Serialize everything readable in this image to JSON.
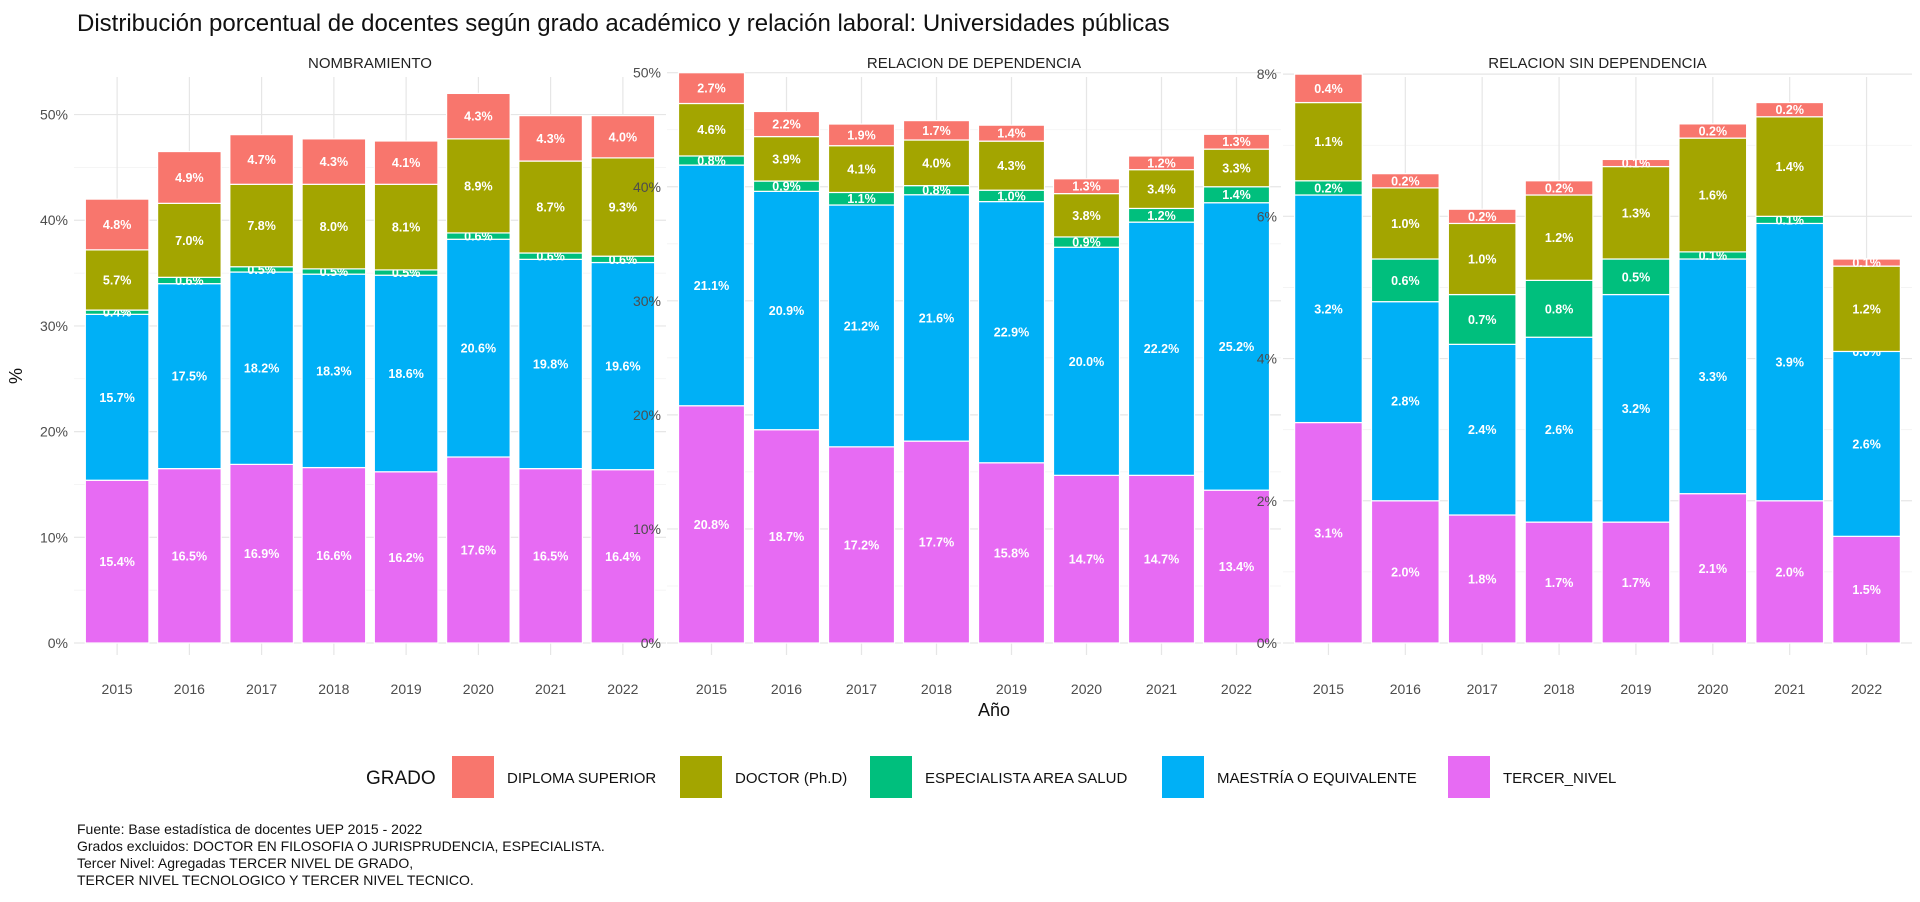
{
  "chart_data": {
    "type": "bar",
    "stacked": true,
    "title": "Distribución porcentual de docentes según grado académico y relación laboral: Universidades públicas",
    "xlabel": "Año",
    "ylabel": "%",
    "categories": [
      "2015",
      "2016",
      "2017",
      "2018",
      "2019",
      "2020",
      "2021",
      "2022"
    ],
    "legend": {
      "title": "GRADO",
      "position": "bottom",
      "entries": [
        {
          "name": "DIPLOMA SUPERIOR",
          "color": "#F8766D"
        },
        {
          "name": "DOCTOR (Ph.D)",
          "color": "#A3A500"
        },
        {
          "name": "ESPECIALISTA AREA SALUD",
          "color": "#00BF7D"
        },
        {
          "name": "MAESTRÍA O EQUIVALENTE",
          "color": "#00B0F6"
        },
        {
          "name": "TERCER_NIVEL",
          "color": "#E76BF3"
        }
      ]
    },
    "grid": true,
    "stack_order_bottom_to_top": [
      "TERCER_NIVEL",
      "MAESTRÍA O EQUIVALENTE",
      "ESPECIALISTA AREA SALUD",
      "DOCTOR (Ph.D)",
      "DIPLOMA SUPERIOR"
    ],
    "facets": [
      {
        "title": "NOMBRAMIENTO",
        "ylim": [
          0,
          54.5
        ],
        "yticks": [
          0,
          10,
          20,
          30,
          40,
          50
        ],
        "ytick_labels": [
          "0%",
          "10%",
          "20%",
          "30%",
          "40%",
          "50%"
        ],
        "series": [
          {
            "name": "TERCER_NIVEL",
            "values": [
              15.4,
              16.5,
              16.9,
              16.6,
              16.2,
              17.6,
              16.5,
              16.4
            ],
            "labels": [
              "15.4%",
              "16.5%",
              "16.9%",
              "16.6%",
              "16.2%",
              "17.6%",
              "16.5%",
              "16.4%"
            ]
          },
          {
            "name": "MAESTRÍA O EQUIVALENTE",
            "values": [
              15.7,
              17.5,
              18.2,
              18.3,
              18.6,
              20.6,
              19.8,
              19.6
            ],
            "labels": [
              "15.7%",
              "17.5%",
              "18.2%",
              "18.3%",
              "18.6%",
              "20.6%",
              "19.8%",
              "19.6%"
            ]
          },
          {
            "name": "ESPECIALISTA AREA SALUD",
            "values": [
              0.4,
              0.6,
              0.5,
              0.5,
              0.5,
              0.6,
              0.6,
              0.6
            ],
            "labels": [
              "0.4%",
              "0.6%",
              "0.5%",
              "0.5%",
              "0.5%",
              "0.6%",
              "0.6%",
              "0.6%"
            ]
          },
          {
            "name": "DOCTOR (Ph.D)",
            "values": [
              5.7,
              7.0,
              7.8,
              8.0,
              8.1,
              8.9,
              8.7,
              9.3
            ],
            "labels": [
              "5.7%",
              "7.0%",
              "7.8%",
              "8.0%",
              "8.1%",
              "8.9%",
              "8.7%",
              "9.3%"
            ]
          },
          {
            "name": "DIPLOMA SUPERIOR",
            "values": [
              4.8,
              4.9,
              4.7,
              4.3,
              4.1,
              4.3,
              4.3,
              4.0
            ],
            "labels": [
              "4.8%",
              "4.9%",
              "4.7%",
              "4.3%",
              "4.1%",
              "4.3%",
              "4.3%",
              "4.0%"
            ]
          }
        ]
      },
      {
        "title": "RELACION DE DEPENDENCIA",
        "ylim": [
          0,
          50.5
        ],
        "yticks": [
          0,
          10,
          20,
          30,
          40,
          50
        ],
        "ytick_labels": [
          "0%",
          "10%",
          "20%",
          "30%",
          "40%",
          "50%"
        ],
        "series": [
          {
            "name": "TERCER_NIVEL",
            "values": [
              20.8,
              18.7,
              17.2,
              17.7,
              15.8,
              14.7,
              14.7,
              13.4
            ],
            "labels": [
              "20.8%",
              "18.7%",
              "17.2%",
              "17.7%",
              "15.8%",
              "14.7%",
              "14.7%",
              "13.4%"
            ]
          },
          {
            "name": "MAESTRÍA O EQUIVALENTE",
            "values": [
              21.1,
              20.9,
              21.2,
              21.6,
              22.9,
              20.0,
              22.2,
              25.2
            ],
            "labels": [
              "21.1%",
              "20.9%",
              "21.2%",
              "21.6%",
              "22.9%",
              "20.0%",
              "22.2%",
              "25.2%"
            ]
          },
          {
            "name": "ESPECIALISTA AREA SALUD",
            "values": [
              0.8,
              0.9,
              1.1,
              0.8,
              1.0,
              0.9,
              1.2,
              1.4
            ],
            "labels": [
              "0.8%",
              "0.9%",
              "1.1%",
              "0.8%",
              "1.0%",
              "0.9%",
              "1.2%",
              "1.4%"
            ]
          },
          {
            "name": "DOCTOR (Ph.D)",
            "values": [
              4.6,
              3.9,
              4.1,
              4.0,
              4.3,
              3.8,
              3.4,
              3.3
            ],
            "labels": [
              "4.6%",
              "3.9%",
              "4.1%",
              "4.0%",
              "4.3%",
              "3.8%",
              "3.4%",
              "3.3%"
            ]
          },
          {
            "name": "DIPLOMA SUPERIOR",
            "values": [
              2.7,
              2.2,
              1.9,
              1.7,
              1.4,
              1.3,
              1.2,
              1.3
            ],
            "labels": [
              "2.7%",
              "2.2%",
              "1.9%",
              "1.7%",
              "1.4%",
              "1.3%",
              "1.2%",
              "1.3%"
            ]
          }
        ]
      },
      {
        "title": "RELACION SIN DEPENDENCIA",
        "ylim": [
          0,
          8.1
        ],
        "yticks": [
          0,
          2,
          4,
          6,
          8
        ],
        "ytick_labels": [
          "0%",
          "2%",
          "4%",
          "6%",
          "8%"
        ],
        "series": [
          {
            "name": "TERCER_NIVEL",
            "values": [
              3.1,
              2.0,
              1.8,
              1.7,
              1.7,
              2.1,
              2.0,
              1.5
            ],
            "labels": [
              "3.1%",
              "2.0%",
              "1.8%",
              "1.7%",
              "1.7%",
              "2.1%",
              "2.0%",
              "1.5%"
            ]
          },
          {
            "name": "MAESTRÍA O EQUIVALENTE",
            "values": [
              3.2,
              2.8,
              2.4,
              2.6,
              3.2,
              3.3,
              3.9,
              2.6
            ],
            "labels": [
              "3.2%",
              "2.8%",
              "2.4%",
              "2.6%",
              "3.2%",
              "3.3%",
              "3.9%",
              "2.6%"
            ]
          },
          {
            "name": "ESPECIALISTA AREA SALUD",
            "values": [
              0.2,
              0.6,
              0.7,
              0.8,
              0.5,
              0.1,
              0.1,
              0.0
            ],
            "labels": [
              "0.2%",
              "0.6%",
              "0.7%",
              "0.8%",
              "0.5%",
              "0.1%",
              "0.1%",
              "0.0%"
            ]
          },
          {
            "name": "DOCTOR (Ph.D)",
            "values": [
              1.1,
              1.0,
              1.0,
              1.2,
              1.3,
              1.6,
              1.4,
              1.2
            ],
            "labels": [
              "1.1%",
              "1.0%",
              "1.0%",
              "1.2%",
              "1.3%",
              "1.6%",
              "1.4%",
              "1.2%"
            ]
          },
          {
            "name": "DIPLOMA SUPERIOR",
            "values": [
              0.4,
              0.2,
              0.2,
              0.2,
              0.1,
              0.2,
              0.2,
              0.1
            ],
            "labels": [
              "0.4%",
              "0.2%",
              "0.2%",
              "0.2%",
              "0.1%",
              "0.2%",
              "0.2%",
              "0.1%"
            ]
          }
        ]
      }
    ],
    "caption": [
      "Fuente: Base estadística de docentes UEP 2015 - 2022",
      "Grados excluidos: DOCTOR EN FILOSOFIA O JURISPRUDENCIA, ESPECIALISTA.",
      "Tercer Nivel: Agregadas TERCER NIVEL DE GRADO,",
      "TERCER NIVEL TECNOLOGICO Y TERCER NIVEL TECNICO."
    ]
  }
}
